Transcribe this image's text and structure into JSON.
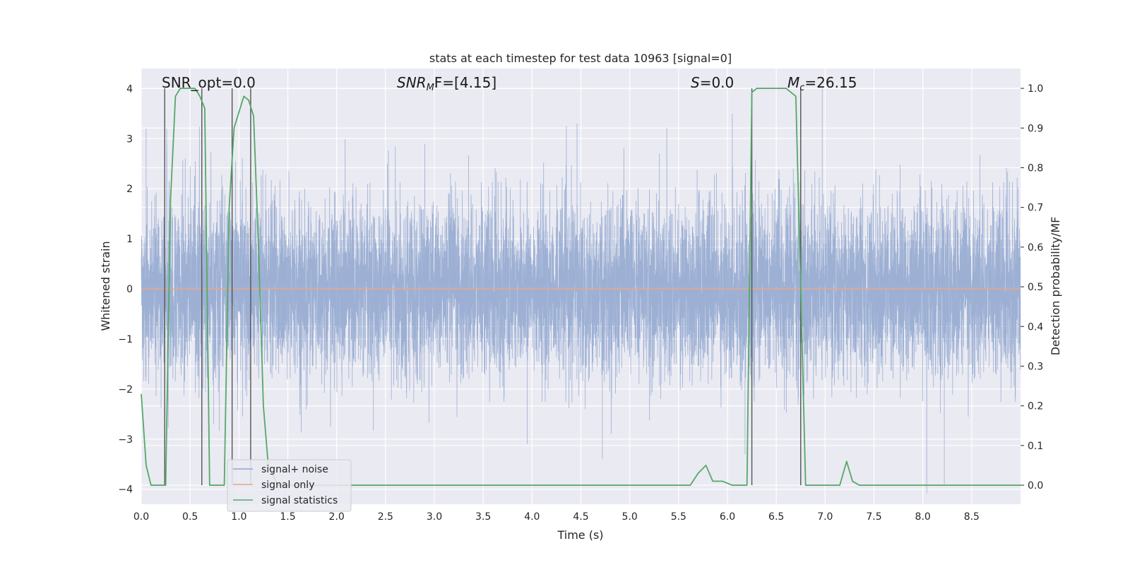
{
  "chart_data": {
    "type": "line",
    "title": "stats at each timestep for test data 10963 [signal=0]",
    "xlabel": "Time (s)",
    "ylabel_left": "Whitened strain",
    "ylabel_right": "Detection probability/MF",
    "xlim": [
      0.0,
      9.0
    ],
    "ylim_left": [
      -4.3,
      4.4
    ],
    "ylim_right": [
      -0.048,
      1.05
    ],
    "grid": true,
    "x_ticks": [
      "0.0",
      "0.5",
      "1.0",
      "1.5",
      "2.0",
      "2.5",
      "3.0",
      "3.5",
      "4.0",
      "4.5",
      "5.0",
      "5.5",
      "6.0",
      "6.5",
      "7.0",
      "7.5",
      "8.0",
      "8.5"
    ],
    "x_tick_values": [
      0.0,
      0.5,
      1.0,
      1.5,
      2.0,
      2.5,
      3.0,
      3.5,
      4.0,
      4.5,
      5.0,
      5.5,
      6.0,
      6.5,
      7.0,
      7.5,
      8.0,
      8.5
    ],
    "y_left_ticks": [
      "4",
      "3",
      "2",
      "1",
      "0",
      "−1",
      "−2",
      "−3",
      "−4"
    ],
    "y_left_tick_values": [
      4,
      3,
      2,
      1,
      0,
      -1,
      -2,
      -3,
      -4
    ],
    "y_right_ticks": [
      "1.0",
      "0.9",
      "0.8",
      "0.7",
      "0.6",
      "0.5",
      "0.4",
      "0.3",
      "0.2",
      "0.1",
      "0.0"
    ],
    "y_right_tick_values": [
      1.0,
      0.9,
      0.8,
      0.7,
      0.6,
      0.5,
      0.4,
      0.3,
      0.2,
      0.1,
      0.0
    ],
    "annotations": {
      "snr_opt": "SNR_opt=0.0",
      "snr_mf_prefix": "SNR",
      "snr_mf_sub": "M",
      "snr_mf_suffix": "F=[4.15]",
      "s_prefix": "S",
      "s_suffix": "=0.0",
      "mc_prefix": "M",
      "mc_sub": "c",
      "mc_suffix": "=26.15"
    },
    "legend": {
      "location": "lower left",
      "entries": [
        {
          "label": "signal+ noise",
          "color": "#8fa6cf"
        },
        {
          "label": "signal only",
          "color": "#e8a88a"
        },
        {
          "label": "signal statistics",
          "color": "#55a868"
        }
      ]
    },
    "series": [
      {
        "name": "signal+ noise",
        "axis": "left",
        "color": "#8fa6cf",
        "noise_std": 0.85,
        "duration": 9.0,
        "visible_peaks": [
          {
            "x": 0.05,
            "y": 3.2
          },
          {
            "x": 0.26,
            "y": 3.2
          },
          {
            "x": 0.45,
            "y": 2.6
          },
          {
            "x": 0.74,
            "y": -2.7
          },
          {
            "x": 2.52,
            "y": 2.5
          },
          {
            "x": 3.95,
            "y": -3.1
          },
          {
            "x": 4.46,
            "y": 3.3
          },
          {
            "x": 4.72,
            "y": -3.4
          },
          {
            "x": 6.05,
            "y": 3.5
          },
          {
            "x": 6.18,
            "y": -3.3
          },
          {
            "x": 6.97,
            "y": 4.0
          },
          {
            "x": 8.22,
            "y": -3.9
          }
        ]
      },
      {
        "name": "signal only",
        "axis": "left",
        "color": "#e8a88a",
        "x": [
          0.0,
          9.0
        ],
        "y": [
          0.0,
          0.0
        ]
      },
      {
        "name": "signal statistics",
        "axis": "right",
        "color": "#55a868",
        "x": [
          0.0,
          0.05,
          0.1,
          0.2,
          0.25,
          0.3,
          0.35,
          0.4,
          0.45,
          0.5,
          0.55,
          0.6,
          0.65,
          0.7,
          0.75,
          0.8,
          0.85,
          0.9,
          0.95,
          1.0,
          1.05,
          1.1,
          1.15,
          1.2,
          1.25,
          1.3,
          1.4,
          1.6,
          2.0,
          3.0,
          4.0,
          5.0,
          5.4,
          5.55,
          5.62,
          5.7,
          5.78,
          5.85,
          5.95,
          6.05,
          6.15,
          6.2,
          6.25,
          6.3,
          6.4,
          6.5,
          6.6,
          6.7,
          6.75,
          6.8,
          6.9,
          6.95,
          7.0,
          7.1,
          7.15,
          7.22,
          7.28,
          7.35,
          7.45,
          7.6,
          8.0,
          8.5,
          9.0
        ],
        "y": [
          0.23,
          0.05,
          0.0,
          0.0,
          0.0,
          0.72,
          0.98,
          1.0,
          1.0,
          1.0,
          1.0,
          0.98,
          0.95,
          0.0,
          0.0,
          0.0,
          0.0,
          0.7,
          0.9,
          0.94,
          0.98,
          0.97,
          0.93,
          0.6,
          0.2,
          0.05,
          0.0,
          0.0,
          0.0,
          0.0,
          0.0,
          0.0,
          0.0,
          0.0,
          0.0,
          0.03,
          0.05,
          0.01,
          0.01,
          0.0,
          0.0,
          0.0,
          0.99,
          1.0,
          1.0,
          1.0,
          1.0,
          0.98,
          0.5,
          0.0,
          0.0,
          0.0,
          0.0,
          0.0,
          0.0,
          0.06,
          0.01,
          0.0,
          0.0,
          0.0,
          0.0,
          0.0,
          0.0
        ]
      }
    ],
    "vertical_markers": [
      0.24,
      0.62,
      0.93,
      1.12,
      6.25,
      6.75
    ]
  }
}
